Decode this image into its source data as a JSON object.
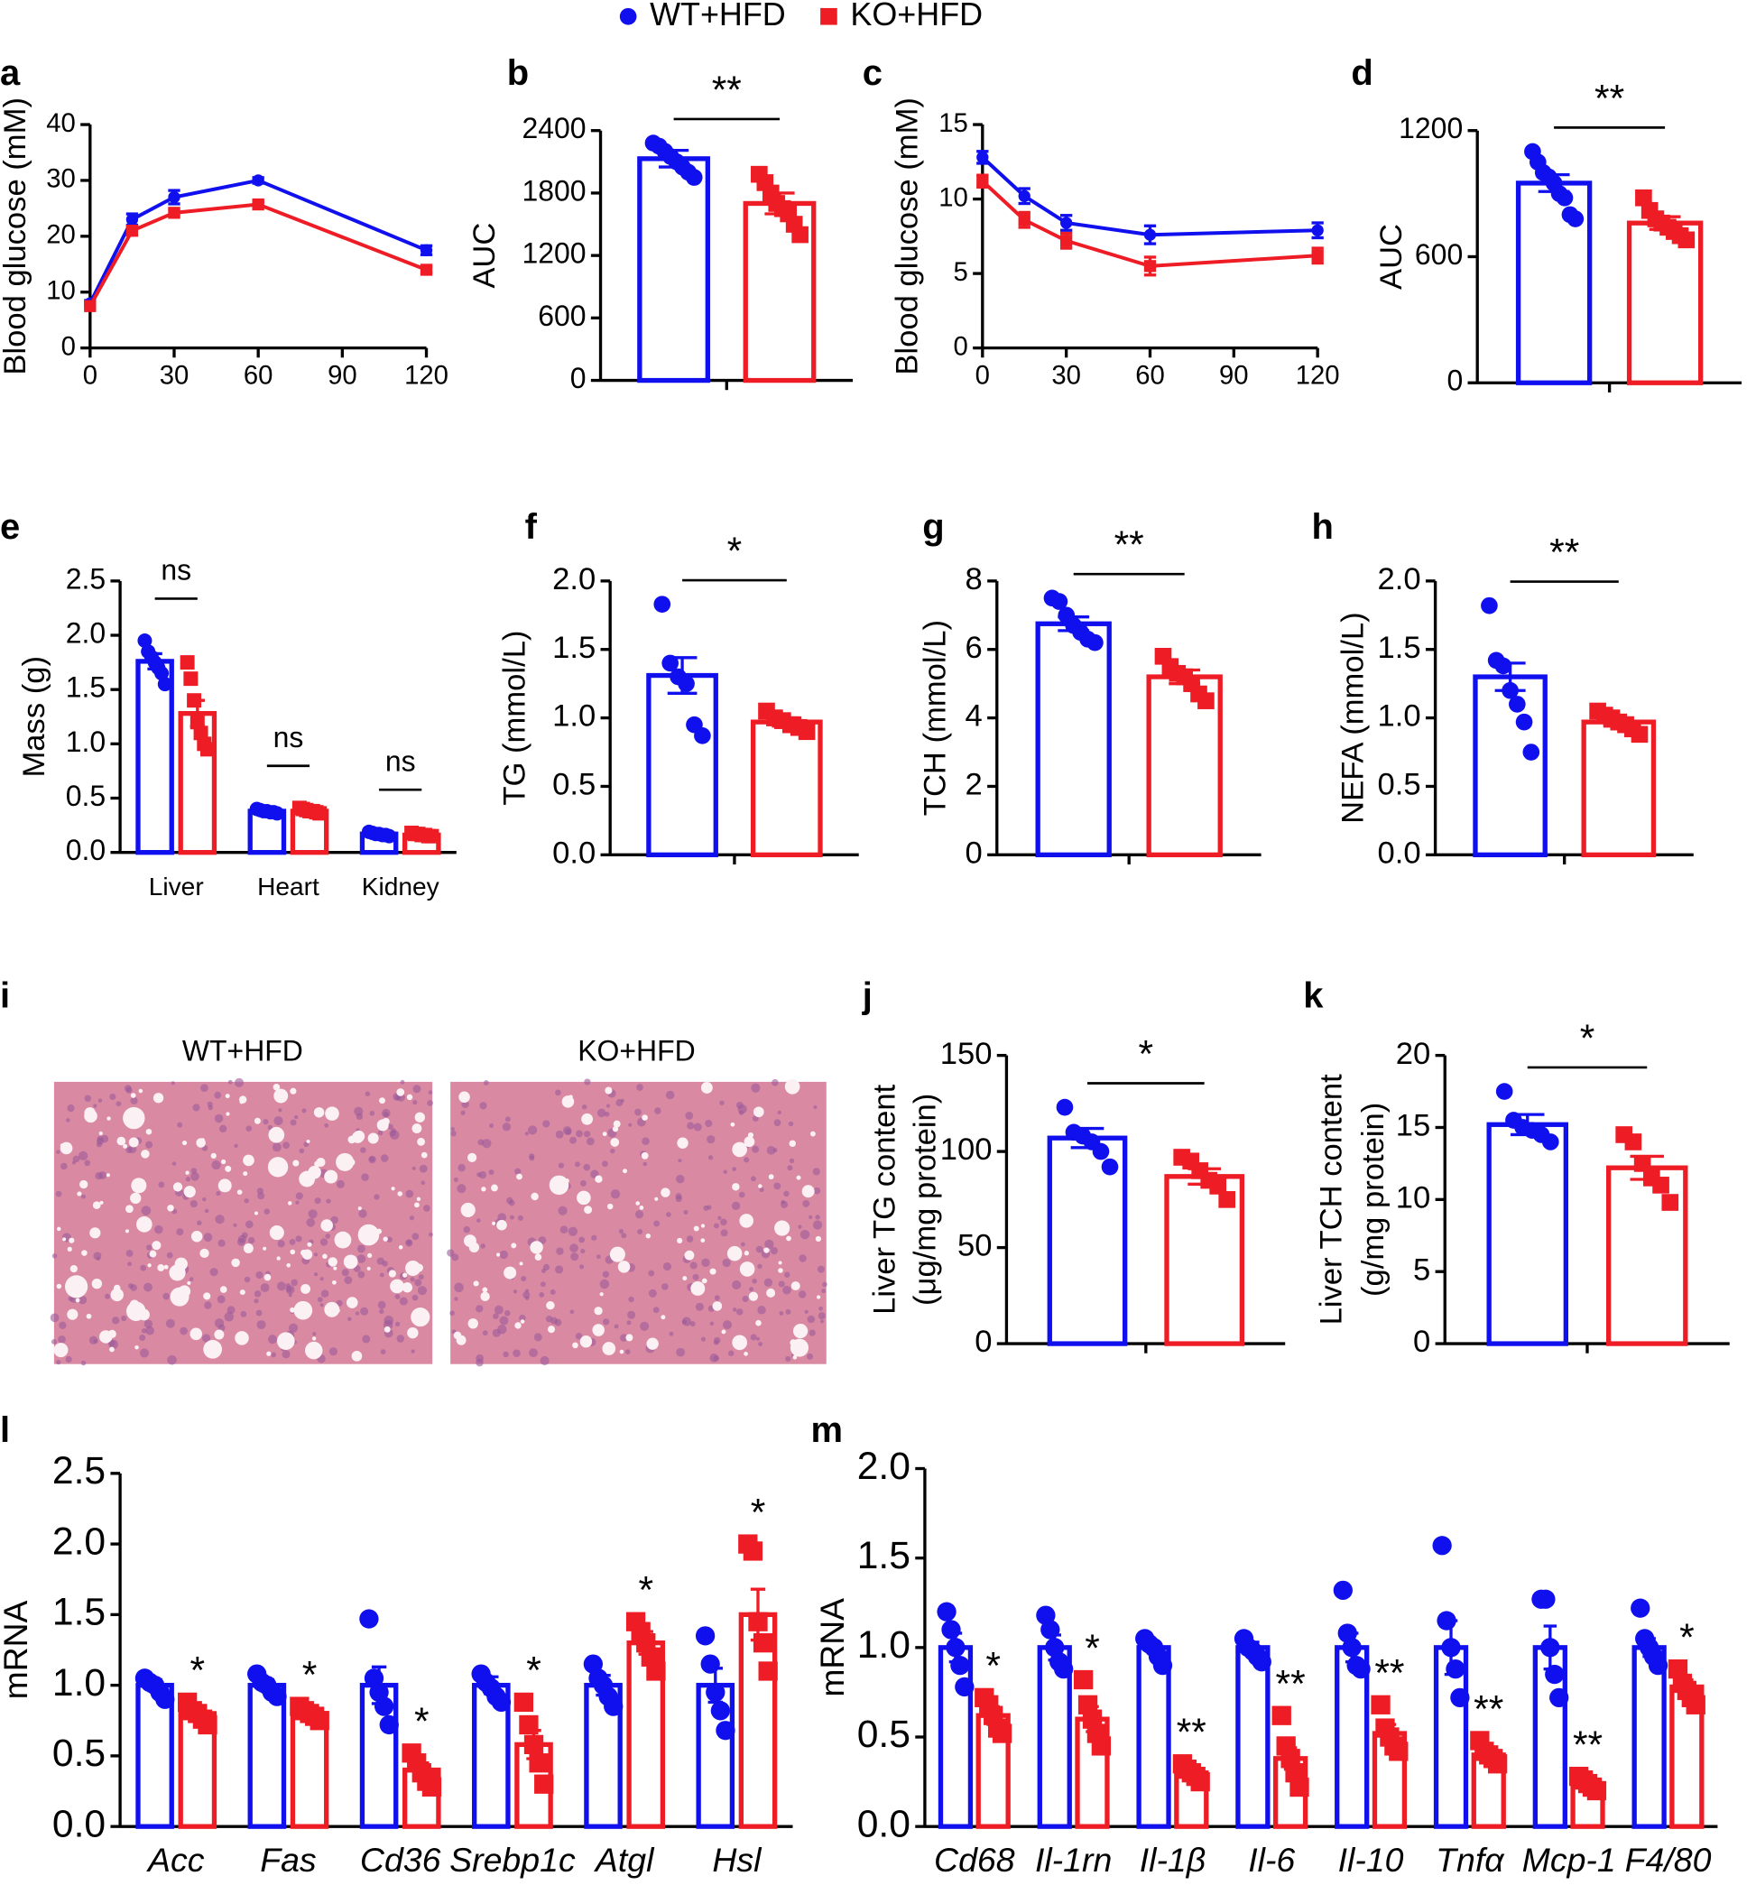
{
  "legend": [
    {
      "name": "WT+HFD",
      "color": "#1010ee",
      "marker": "circle"
    },
    {
      "name": "KO+HFD",
      "color": "#ee1c25",
      "marker": "square"
    }
  ],
  "chart_data": [
    {
      "panel": "a",
      "type": "line",
      "ylabel": "Blood glucose (mM)",
      "x": [
        0,
        15,
        30,
        60,
        120
      ],
      "xlim": [
        0,
        120
      ],
      "xticks": [
        0,
        30,
        60,
        90,
        120
      ],
      "ylim": [
        0,
        40
      ],
      "yticks": [
        0,
        10,
        20,
        30,
        40
      ],
      "series": [
        {
          "values": [
            8,
            23,
            27,
            30,
            17.5
          ],
          "errors": [
            0.5,
            1,
            1.2,
            0.5,
            0.8
          ]
        },
        {
          "values": [
            7.5,
            21,
            24.2,
            25.7,
            14
          ],
          "errors": [
            0.5,
            0.8,
            0.6,
            0.5,
            0.5
          ]
        }
      ]
    },
    {
      "panel": "b",
      "type": "bar",
      "ylabel": "AUC",
      "ylim": [
        0,
        2400
      ],
      "yticks": [
        0,
        600,
        1200,
        1800,
        2400
      ],
      "significance": [
        "**"
      ],
      "significance_style": "bracket",
      "series": [
        {
          "values": [
            2130
          ],
          "errors": [
            80
          ],
          "points": [
            [
              2280,
              2250,
              2200,
              2150,
              2100,
              2050,
              2000,
              1950
            ]
          ]
        },
        {
          "values": [
            1700
          ],
          "errors": [
            100
          ],
          "points": [
            [
              1980,
              1900,
              1800,
              1700,
              1650,
              1600,
              1500,
              1400
            ]
          ]
        }
      ]
    },
    {
      "panel": "c",
      "type": "line",
      "ylabel": "Blood glucose (mM)",
      "x": [
        0,
        15,
        30,
        60,
        120
      ],
      "xlim": [
        0,
        120
      ],
      "xticks": [
        0,
        30,
        60,
        90,
        120
      ],
      "ylim": [
        0,
        15
      ],
      "yticks": [
        0,
        5,
        10,
        15
      ],
      "series": [
        {
          "values": [
            12.8,
            10.2,
            8.4,
            7.6,
            7.9
          ],
          "errors": [
            0.4,
            0.5,
            0.5,
            0.6,
            0.5
          ]
        },
        {
          "values": [
            11.2,
            8.6,
            7.2,
            5.5,
            6.2
          ],
          "errors": [
            0.4,
            0.5,
            0.5,
            0.6,
            0.5
          ]
        }
      ]
    },
    {
      "panel": "d",
      "type": "bar",
      "ylabel": "AUC",
      "ylim": [
        0,
        1200
      ],
      "yticks": [
        0,
        600,
        1200
      ],
      "significance": [
        "**"
      ],
      "significance_style": "bracket",
      "series": [
        {
          "values": [
            950
          ],
          "errors": [
            40
          ],
          "points": [
            [
              1100,
              1050,
              1000,
              980,
              950,
              900,
              880,
              800,
              780
            ]
          ]
        },
        {
          "values": [
            760
          ],
          "errors": [
            30
          ],
          "points": [
            [
              880,
              820,
              780,
              760,
              740,
              720,
              700,
              680
            ]
          ]
        }
      ]
    },
    {
      "panel": "e",
      "type": "bar",
      "ylabel": "Mass (g)",
      "categories": [
        "Liver",
        "Heart",
        "Kidney"
      ],
      "ylim": [
        0,
        2.5
      ],
      "yticks": [
        {
          "value": 0,
          "label": "0.0"
        },
        0.5,
        {
          "value": 1,
          "label": "1.0"
        },
        1.5,
        {
          "value": 2,
          "label": "2.0"
        },
        2.5
      ],
      "significance": [
        "ns",
        "ns",
        "ns"
      ],
      "significance_style": "bracket",
      "series": [
        {
          "values": [
            1.76,
            0.38,
            0.17
          ],
          "errors": [
            0.07,
            0.01,
            0.01
          ],
          "points": [
            [
              1.95,
              1.85,
              1.8,
              1.75,
              1.7,
              1.65,
              1.55
            ],
            [
              0.4,
              0.39,
              0.38,
              0.38,
              0.37,
              0.37,
              0.36
            ],
            [
              0.19,
              0.18,
              0.17,
              0.17,
              0.16,
              0.16,
              0.15
            ]
          ]
        },
        {
          "values": [
            1.28,
            0.38,
            0.16
          ],
          "errors": [
            0.12,
            0.01,
            0.01
          ],
          "points": [
            [
              1.75,
              1.6,
              1.4,
              1.2,
              1.1,
              1.0,
              0.95
            ],
            [
              0.41,
              0.4,
              0.39,
              0.38,
              0.38,
              0.37,
              0.36
            ],
            [
              0.18,
              0.17,
              0.17,
              0.16,
              0.16,
              0.15,
              0.15
            ]
          ]
        }
      ]
    },
    {
      "panel": "f",
      "type": "bar",
      "ylabel": "TG (mmol/L)",
      "ylim": [
        0,
        2
      ],
      "yticks": [
        {
          "value": 0,
          "label": "0.0"
        },
        0.5,
        {
          "value": 1,
          "label": "1.0"
        },
        1.5,
        {
          "value": 2,
          "label": "2.0"
        }
      ],
      "significance": [
        "*"
      ],
      "significance_style": "bracket",
      "series": [
        {
          "values": [
            1.31
          ],
          "errors": [
            0.13
          ],
          "points": [
            [
              1.83,
              1.4,
              1.3,
              1.25,
              0.95,
              0.87
            ]
          ]
        },
        {
          "values": [
            0.97
          ],
          "errors": [
            0.03
          ],
          "points": [
            [
              1.05,
              1.0,
              0.98,
              0.95,
              0.93,
              0.9
            ]
          ]
        }
      ]
    },
    {
      "panel": "g",
      "type": "bar",
      "ylabel": "TCH (mmol/L)",
      "ylim": [
        0,
        8
      ],
      "yticks": [
        0,
        2,
        4,
        6,
        8
      ],
      "significance": [
        "**"
      ],
      "significance_style": "bracket",
      "series": [
        {
          "values": [
            6.75
          ],
          "errors": [
            0.2
          ],
          "points": [
            [
              7.5,
              7.4,
              7.0,
              6.7,
              6.5,
              6.3,
              6.2
            ]
          ]
        },
        {
          "values": [
            5.2
          ],
          "errors": [
            0.2
          ],
          "points": [
            [
              5.8,
              5.5,
              5.3,
              5.2,
              5.0,
              4.7,
              4.5
            ]
          ]
        }
      ]
    },
    {
      "panel": "h",
      "type": "bar",
      "ylabel": "NEFA (mmol/L)",
      "ylim": [
        0,
        2
      ],
      "yticks": [
        {
          "value": 0,
          "label": "0.0"
        },
        0.5,
        {
          "value": 1,
          "label": "1.0"
        },
        1.5,
        {
          "value": 2,
          "label": "2.0"
        }
      ],
      "significance": [
        "**"
      ],
      "significance_style": "bracket",
      "series": [
        {
          "values": [
            1.3
          ],
          "errors": [
            0.1
          ],
          "points": [
            [
              1.82,
              1.42,
              1.38,
              1.2,
              1.1,
              0.97,
              0.75
            ]
          ]
        },
        {
          "values": [
            0.97
          ],
          "errors": [
            0.03
          ],
          "points": [
            [
              1.05,
              1.02,
              1.0,
              0.97,
              0.95,
              0.92,
              0.88
            ]
          ]
        }
      ]
    },
    {
      "panel": "i",
      "type": "micrograph",
      "titles": [
        "WT+HFD",
        "KO+HFD"
      ]
    },
    {
      "panel": "j",
      "type": "bar",
      "ylabel": [
        "Liver TG content",
        "(μg/mg protein)"
      ],
      "ylim": [
        0,
        150
      ],
      "yticks": [
        0,
        50,
        100,
        150
      ],
      "significance": [
        "*"
      ],
      "significance_style": "bracket",
      "series": [
        {
          "values": [
            107
          ],
          "errors": [
            5
          ],
          "points": [
            [
              123,
              110,
              108,
              105,
              100,
              92
            ]
          ]
        },
        {
          "values": [
            87
          ],
          "errors": [
            4
          ],
          "points": [
            [
              97,
              95,
              90,
              85,
              82,
              75
            ]
          ]
        }
      ]
    },
    {
      "panel": "k",
      "type": "bar",
      "ylabel": [
        "Liver TCH content",
        "(g/mg protein)"
      ],
      "ylim": [
        0,
        20
      ],
      "yticks": [
        0,
        5,
        10,
        15,
        20
      ],
      "significance": [
        "*"
      ],
      "significance_style": "bracket",
      "series": [
        {
          "values": [
            15.2
          ],
          "errors": [
            0.7
          ],
          "points": [
            [
              17.5,
              15.5,
              15,
              14.8,
              14.5,
              14
            ]
          ]
        },
        {
          "values": [
            12.2
          ],
          "errors": [
            0.8
          ],
          "points": [
            [
              14.5,
              14,
              12.5,
              11.5,
              11,
              9.8
            ]
          ]
        }
      ]
    },
    {
      "panel": "l",
      "type": "bar",
      "ylabel": "mRNA",
      "italic_categories": true,
      "categories": [
        "Acc",
        "Fas",
        "Cd36",
        "Srebp1c",
        "Atgl",
        "Hsl"
      ],
      "ylim": [
        0,
        2.5
      ],
      "yticks": [
        {
          "value": 0,
          "label": "0.0"
        },
        0.5,
        {
          "value": 1,
          "label": "1.0"
        },
        1.5,
        {
          "value": 2,
          "label": "2.0"
        },
        2.5
      ],
      "significance": [
        "*",
        "*",
        "*",
        "*",
        "*",
        "*"
      ],
      "significance_style": "star",
      "series": [
        {
          "values": [
            1,
            1,
            1,
            1,
            1,
            1
          ],
          "errors": [
            0.04,
            0.04,
            0.13,
            0.06,
            0.07,
            0.12
          ],
          "points": [
            [
              1.05,
              1.02,
              1.0,
              0.95,
              0.9
            ],
            [
              1.08,
              1.02,
              1.0,
              0.95,
              0.92
            ],
            [
              1.47,
              1.05,
              0.95,
              0.85,
              0.72
            ],
            [
              1.08,
              1.02,
              0.98,
              0.92,
              0.88
            ],
            [
              1.15,
              1.05,
              1.0,
              0.92,
              0.85
            ],
            [
              1.35,
              1.15,
              0.95,
              0.82,
              0.68
            ]
          ]
        },
        {
          "values": [
            0.8,
            0.8,
            0.4,
            0.58,
            1.3,
            1.5
          ],
          "errors": [
            0.03,
            0.03,
            0.05,
            0.1,
            0.08,
            0.18
          ],
          "points": [
            [
              0.88,
              0.82,
              0.8,
              0.76,
              0.72
            ],
            [
              0.85,
              0.82,
              0.8,
              0.78,
              0.75
            ],
            [
              0.52,
              0.45,
              0.38,
              0.32,
              0.28
            ],
            [
              0.88,
              0.72,
              0.58,
              0.45,
              0.3
            ],
            [
              1.45,
              1.38,
              1.3,
              1.2,
              1.1
            ],
            [
              2.0,
              1.95,
              1.45,
              1.3,
              1.1
            ]
          ]
        }
      ]
    },
    {
      "panel": "m",
      "type": "bar",
      "ylabel": "mRNA",
      "italic_categories": true,
      "categories": [
        "Cd68",
        "Il-1rn",
        "Il-1β",
        "Il-6",
        "Il-10",
        "Tnfα",
        "Mcp-1",
        "F4/80"
      ],
      "ylim": [
        0,
        2
      ],
      "yticks": [
        {
          "value": 0,
          "label": "0.0"
        },
        0.5,
        {
          "value": 1,
          "label": "1.0"
        },
        1.5,
        {
          "value": 2,
          "label": "2.0"
        }
      ],
      "significance": [
        "*",
        "*",
        "**",
        "**",
        "**",
        "**",
        "**",
        "*"
      ],
      "significance_style": "star",
      "series": [
        {
          "values": [
            1,
            1,
            1,
            1,
            1,
            1,
            1,
            1
          ],
          "errors": [
            0.08,
            0.07,
            0.03,
            0.03,
            0.08,
            0.15,
            0.12,
            0.05
          ],
          "points": [
            [
              1.2,
              1.1,
              1.0,
              0.9,
              0.78
            ],
            [
              1.18,
              1.1,
              1.0,
              0.92,
              0.88
            ],
            [
              1.05,
              1.02,
              1.0,
              0.95,
              0.9
            ],
            [
              1.05,
              1.0,
              0.98,
              0.95,
              0.92
            ],
            [
              1.32,
              1.08,
              1.0,
              0.9,
              0.88
            ],
            [
              1.57,
              1.15,
              1.0,
              0.88,
              0.72
            ],
            [
              1.27,
              1.27,
              1.0,
              0.85,
              0.72
            ],
            [
              1.22,
              1.05,
              1.0,
              0.95,
              0.9
            ]
          ]
        },
        {
          "values": [
            0.62,
            0.6,
            0.3,
            0.38,
            0.52,
            0.4,
            0.24,
            0.78
          ],
          "errors": [
            0.05,
            0.07,
            0.02,
            0.06,
            0.05,
            0.03,
            0.02,
            0.04
          ],
          "points": [
            [
              0.72,
              0.68,
              0.62,
              0.55,
              0.52
            ],
            [
              0.82,
              0.68,
              0.6,
              0.52,
              0.45
            ],
            [
              0.35,
              0.32,
              0.3,
              0.28,
              0.25
            ],
            [
              0.62,
              0.45,
              0.38,
              0.3,
              0.22
            ],
            [
              0.68,
              0.55,
              0.5,
              0.45,
              0.42
            ],
            [
              0.48,
              0.42,
              0.4,
              0.38,
              0.35
            ],
            [
              0.28,
              0.26,
              0.24,
              0.22,
              0.2
            ],
            [
              0.88,
              0.8,
              0.76,
              0.72,
              0.68
            ]
          ]
        }
      ]
    }
  ]
}
